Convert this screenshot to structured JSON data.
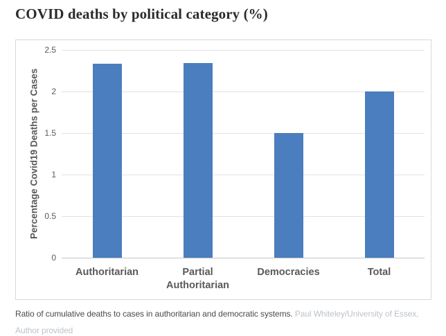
{
  "page": {
    "title": "COVID deaths by political category (%)"
  },
  "chart_data": {
    "type": "bar",
    "title": "COVID deaths by political category (%)",
    "categories": [
      "Authoritarian",
      "Partial Authoritarian",
      "Democracies",
      "Total"
    ],
    "values": [
      2.33,
      2.34,
      1.5,
      2.0
    ],
    "xlabel": "",
    "ylabel": "Percentage Covid19 Deaths per Cases",
    "ylim": [
      0,
      2.5
    ],
    "yticks": [
      0,
      0.5,
      1,
      1.5,
      2,
      2.5
    ],
    "grid": true,
    "legend_position": "none",
    "bar_color": "#4a7ebe",
    "gridline_color": "#e2e2e2"
  },
  "caption": {
    "text": "Ratio of cumulative deaths to cases in authoritarian and democratic systems.",
    "source": "Paul Whiteley/University of Essex, Author provided"
  }
}
